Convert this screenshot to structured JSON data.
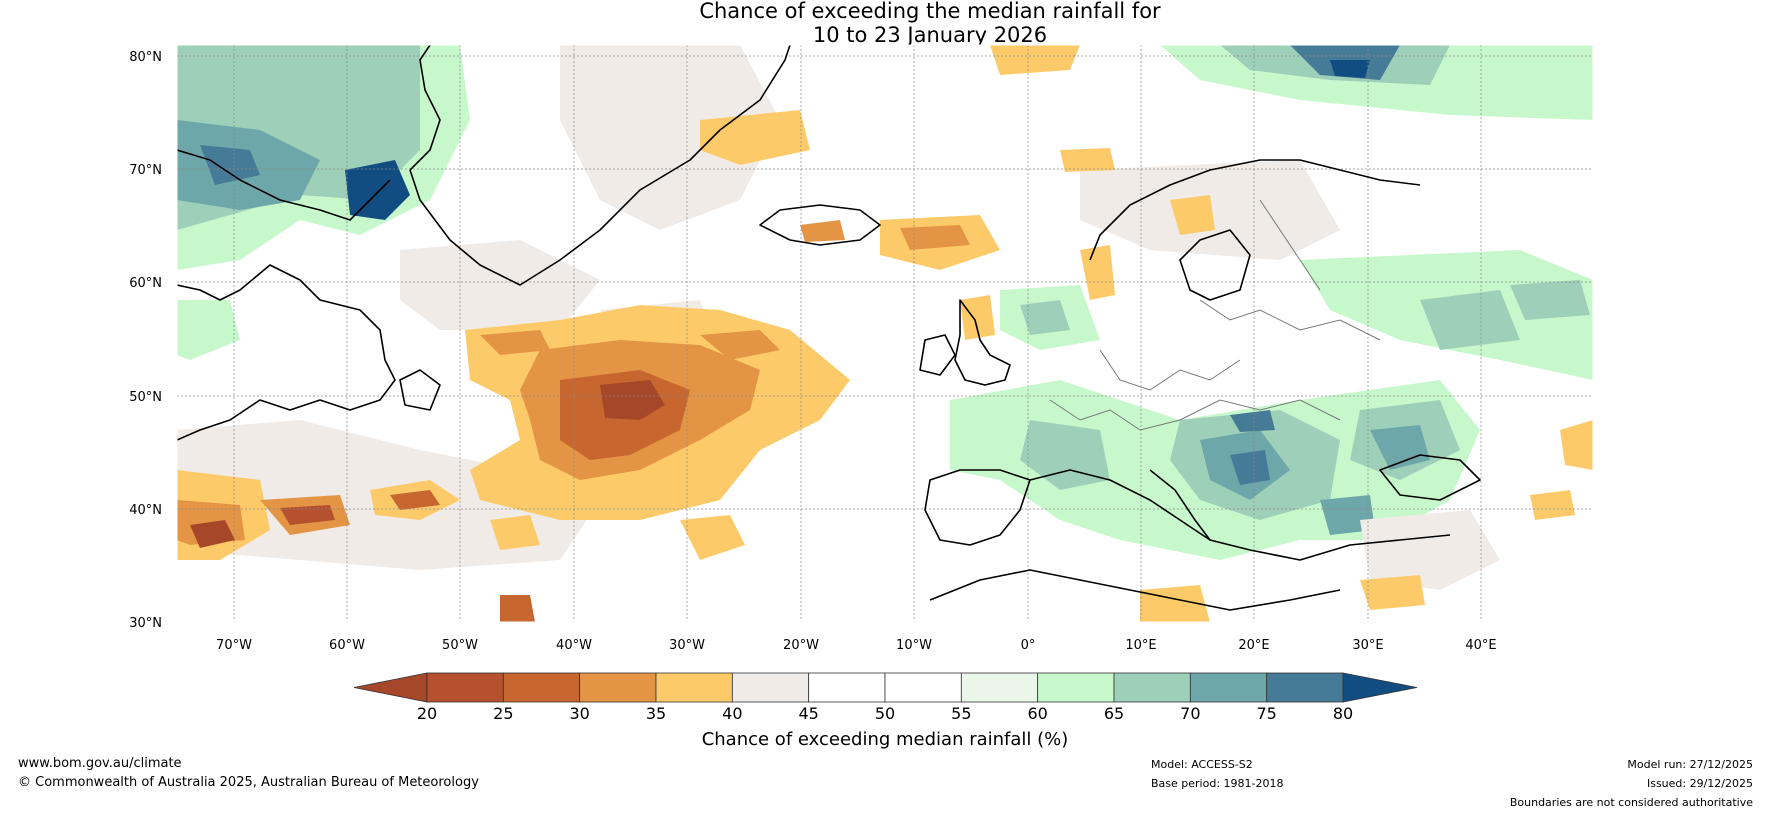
{
  "title": {
    "line1": "Chance of exceeding the median rainfall for",
    "line2": "10 to 23 January 2026"
  },
  "map": {
    "lat_labels": [
      "80°N",
      "70°N",
      "60°N",
      "50°N",
      "40°N",
      "30°N"
    ],
    "lon_labels": [
      "70°W",
      "60°W",
      "50°W",
      "40°W",
      "30°W",
      "20°W",
      "10°W",
      "0°",
      "10°E",
      "20°E",
      "30°E",
      "40°E"
    ],
    "lat_range": [
      30,
      80
    ],
    "lon_range": [
      -75,
      50
    ]
  },
  "legend": {
    "title": "Chance of exceeding median rainfall (%)",
    "ticks": [
      "20",
      "25",
      "30",
      "35",
      "40",
      "45",
      "50",
      "55",
      "60",
      "65",
      "70",
      "75",
      "80"
    ],
    "colors": [
      "#a6472a",
      "#b5512e",
      "#c8662f",
      "#e49445",
      "#fdca6a",
      "#f0ebe6",
      "#ffffff",
      "#ffffff",
      "#eaf6ea",
      "#c7f8cc",
      "#9ecfb9",
      "#6ea7aa",
      "#457b97",
      "#124d82"
    ]
  },
  "footer": {
    "website": "www.bom.gov.au/climate",
    "copyright": "© Commonwealth of Australia 2025, Australian Bureau of Meteorology",
    "model": "Model: ACCESS-S2",
    "base_period": "Base period: 1981-2018",
    "model_run": "Model run: 27/12/2025",
    "issued": "Issued: 29/12/2025",
    "disclaimer": "Boundaries are not considered authoritative"
  }
}
